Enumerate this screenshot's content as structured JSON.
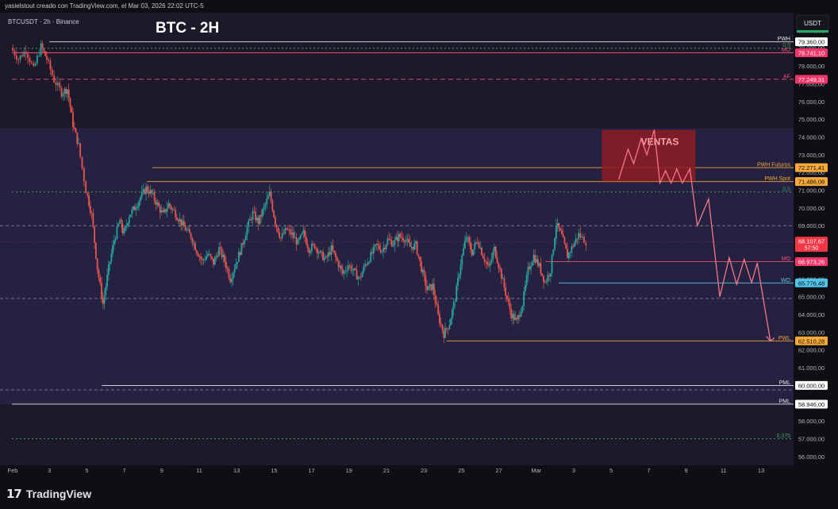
{
  "header": {
    "credit": "yasielstout creado con TradingView.com, el Mar 03, 2026 22:02 UTC-5"
  },
  "footer": {
    "brand": "TradingView"
  },
  "chart_data": {
    "type": "candlestick",
    "symbol": "BTCUSDT · 2h · Binance",
    "title": "BTC - 2H",
    "currency": "USDT",
    "ylim": [
      55500,
      81000
    ],
    "y_ticks": [
      56000,
      57000,
      58000,
      59000,
      60000,
      61000,
      62000,
      63000,
      64000,
      65000,
      66000,
      67000,
      68000,
      69000,
      70000,
      71000,
      72000,
      73000,
      74000,
      75000,
      76000,
      77000,
      78000,
      79000,
      80000
    ],
    "x_ticks": [
      {
        "label": "Feb",
        "day": 1
      },
      {
        "label": "3",
        "day": 3
      },
      {
        "label": "5",
        "day": 5
      },
      {
        "label": "7",
        "day": 7
      },
      {
        "label": "9",
        "day": 9
      },
      {
        "label": "11",
        "day": 11
      },
      {
        "label": "13",
        "day": 13
      },
      {
        "label": "15",
        "day": 15
      },
      {
        "label": "17",
        "day": 17
      },
      {
        "label": "19",
        "day": 19
      },
      {
        "label": "21",
        "day": 21
      },
      {
        "label": "23",
        "day": 23
      },
      {
        "label": "25",
        "day": 25
      },
      {
        "label": "27",
        "day": 27
      },
      {
        "label": "Mar",
        "day": 29
      },
      {
        "label": "3",
        "day": 31
      },
      {
        "label": "5",
        "day": 33
      },
      {
        "label": "7",
        "day": 35
      },
      {
        "label": "9",
        "day": 37
      },
      {
        "label": "11",
        "day": 39
      },
      {
        "label": "13",
        "day": 41
      }
    ],
    "price_path": [
      [
        1,
        79000
      ],
      [
        1.4,
        78400
      ],
      [
        1.8,
        78900
      ],
      [
        2.2,
        77800
      ],
      [
        2.6,
        79100
      ],
      [
        2.9,
        78400
      ],
      [
        3.3,
        77200
      ],
      [
        3.7,
        76500
      ],
      [
        4.0,
        76700
      ],
      [
        4.3,
        74700
      ],
      [
        4.6,
        73500
      ],
      [
        5.0,
        71000
      ],
      [
        5.3,
        69600
      ],
      [
        5.6,
        66600
      ],
      [
        5.9,
        64600
      ],
      [
        6.2,
        66600
      ],
      [
        6.5,
        68200
      ],
      [
        6.8,
        69300
      ],
      [
        7.0,
        68500
      ],
      [
        7.3,
        69600
      ],
      [
        7.6,
        70000
      ],
      [
        7.9,
        70600
      ],
      [
        8.2,
        71100
      ],
      [
        8.5,
        70800
      ],
      [
        8.8,
        70200
      ],
      [
        9.1,
        69600
      ],
      [
        9.4,
        70200
      ],
      [
        9.7,
        69800
      ],
      [
        10.0,
        69300
      ],
      [
        10.3,
        68800
      ],
      [
        10.6,
        68400
      ],
      [
        10.9,
        67600
      ],
      [
        11.2,
        67000
      ],
      [
        11.5,
        67400
      ],
      [
        11.8,
        66900
      ],
      [
        12.1,
        67700
      ],
      [
        12.4,
        67000
      ],
      [
        12.7,
        66000
      ],
      [
        13.0,
        66900
      ],
      [
        13.3,
        67800
      ],
      [
        13.6,
        68900
      ],
      [
        13.9,
        69700
      ],
      [
        14.2,
        69200
      ],
      [
        14.5,
        70000
      ],
      [
        14.8,
        70800
      ],
      [
        15.1,
        69200
      ],
      [
        15.4,
        68300
      ],
      [
        15.7,
        68800
      ],
      [
        16.0,
        68500
      ],
      [
        16.3,
        68000
      ],
      [
        16.6,
        68600
      ],
      [
        16.9,
        67700
      ],
      [
        17.2,
        67900
      ],
      [
        17.5,
        67400
      ],
      [
        17.8,
        67100
      ],
      [
        18.1,
        67700
      ],
      [
        18.4,
        67000
      ],
      [
        18.7,
        66300
      ],
      [
        19.0,
        66800
      ],
      [
        19.3,
        66400
      ],
      [
        19.6,
        66000
      ],
      [
        19.9,
        66800
      ],
      [
        20.2,
        67300
      ],
      [
        20.5,
        67900
      ],
      [
        20.8,
        67600
      ],
      [
        21.1,
        68200
      ],
      [
        21.4,
        68000
      ],
      [
        21.7,
        68400
      ],
      [
        22.0,
        68300
      ],
      [
        22.3,
        67800
      ],
      [
        22.6,
        67900
      ],
      [
        22.9,
        66600
      ],
      [
        23.2,
        65400
      ],
      [
        23.5,
        65600
      ],
      [
        23.8,
        63900
      ],
      [
        24.1,
        62900
      ],
      [
        24.4,
        63500
      ],
      [
        24.7,
        64900
      ],
      [
        25.0,
        66900
      ],
      [
        25.3,
        68400
      ],
      [
        25.6,
        67500
      ],
      [
        25.9,
        68200
      ],
      [
        26.2,
        67300
      ],
      [
        26.5,
        66600
      ],
      [
        26.8,
        67700
      ],
      [
        27.1,
        66500
      ],
      [
        27.4,
        65200
      ],
      [
        27.7,
        64000
      ],
      [
        28.0,
        63600
      ],
      [
        28.3,
        64600
      ],
      [
        28.6,
        66500
      ],
      [
        28.9,
        67300
      ],
      [
        29.2,
        66700
      ],
      [
        29.5,
        65800
      ],
      [
        29.8,
        66500
      ],
      [
        30.1,
        69100
      ],
      [
        30.4,
        68400
      ],
      [
        30.7,
        67300
      ],
      [
        31.0,
        67900
      ],
      [
        31.3,
        68500
      ],
      [
        31.7,
        68100
      ]
    ],
    "levels": [
      {
        "name": "PWH",
        "value": 79360,
        "label": "79.360,00",
        "color": "#e6e6e6",
        "badge_bg": "#ffffff",
        "badge_fg": "#111111",
        "style": "solid",
        "x_start": 3.0
      },
      {
        "name": "0,5",
        "value": 79000,
        "label": "",
        "color": "#3e9f61",
        "badge_bg": "",
        "badge_fg": "",
        "style": "dotted",
        "x_start": 1.0
      },
      {
        "name": "MO",
        "value": 78741.1,
        "label": "78.741,10",
        "color": "#f24f74",
        "badge_bg": "#f23669",
        "badge_fg": "#ffffff",
        "style": "solid",
        "x_start": 1.0
      },
      {
        "name": "AF",
        "value": 77249.31,
        "label": "77.249,31",
        "color": "#f24f74",
        "badge_bg": "#f23669",
        "badge_fg": "#ffffff",
        "style": "dashed",
        "x_start": 1.0
      },
      {
        "name": "PWH Futuros",
        "value": 72271.41,
        "label": "72.271,41",
        "color": "#f3a53b",
        "badge_bg": "#f5a93a",
        "badge_fg": "#111111",
        "style": "solid",
        "x_start": 8.5
      },
      {
        "name": "PWH Spot",
        "value": 71486.08,
        "label": "71.486,08",
        "color": "#f3a53b",
        "badge_bg": "#f5a93a",
        "badge_fg": "#111111",
        "style": "solid",
        "x_start": 8.2
      },
      {
        "name": "0,5",
        "value": 70900,
        "label": "",
        "color": "#3e9f61",
        "badge_bg": "",
        "badge_fg": "",
        "style": "dotted",
        "x_start": 1.0
      },
      {
        "name": "MO",
        "value": 66973.26,
        "label": "66.973,26",
        "color": "#f24f74",
        "badge_bg": "#f23669",
        "badge_fg": "#ffffff",
        "style": "solid",
        "x_start": 29.5
      },
      {
        "name": "WO",
        "value": 65776.48,
        "label": "65.776,48",
        "color": "#5fc3e4",
        "badge_bg": "#4fc3e8",
        "badge_fg": "#111111",
        "style": "solid",
        "x_start": 30.2
      },
      {
        "name": "PWL",
        "value": 62510.28,
        "label": "62.510,28",
        "color": "#f3a53b",
        "badge_bg": "#f5a93a",
        "badge_fg": "#111111",
        "style": "solid",
        "x_start": 24.2
      },
      {
        "name": "PML",
        "value": 60000,
        "label": "60.000,00",
        "color": "#e6e6e6",
        "badge_bg": "#ffffff",
        "badge_fg": "#111111",
        "style": "solid",
        "x_start": 5.8
      },
      {
        "name": "PML",
        "value": 58946,
        "label": "58.946,00",
        "color": "#e6e6e6",
        "badge_bg": "#ffffff",
        "badge_fg": "#111111",
        "style": "solid",
        "x_start": 1.0
      },
      {
        "name": "0,375",
        "value": 57000,
        "label": "",
        "color": "#3e9f61",
        "badge_bg": "",
        "badge_fg": "",
        "style": "dotted",
        "x_start": 1.0
      }
    ],
    "extra_dashed": [
      69000,
      64900,
      59750
    ],
    "current_price": {
      "value": 68107.67,
      "label": "68.107,67",
      "countdown": "57:50",
      "color": "#f23645"
    },
    "sell_zone": {
      "label": "VENTAS",
      "x0": 32.5,
      "x1": 37.5,
      "y0": 71500,
      "y1": 74400,
      "fill": "#8e1b24"
    },
    "premium_zone": {
      "y0": 58946,
      "y1": 74500
    },
    "projection": [
      [
        33.4,
        71600
      ],
      [
        33.9,
        73300
      ],
      [
        34.2,
        72500
      ],
      [
        34.6,
        73900
      ],
      [
        34.9,
        73000
      ],
      [
        35.3,
        74400
      ],
      [
        35.6,
        71400
      ],
      [
        35.9,
        72100
      ],
      [
        36.2,
        71400
      ],
      [
        36.5,
        72200
      ],
      [
        36.8,
        71400
      ],
      [
        37.2,
        72200
      ],
      [
        37.6,
        69000
      ],
      [
        38.2,
        70500
      ],
      [
        38.8,
        65000
      ],
      [
        39.3,
        67200
      ],
      [
        39.7,
        65700
      ],
      [
        40.1,
        67100
      ],
      [
        40.5,
        65800
      ],
      [
        40.8,
        66900
      ],
      [
        41.1,
        65000
      ],
      [
        41.5,
        62500
      ]
    ],
    "projection_color": "#f7768a"
  }
}
